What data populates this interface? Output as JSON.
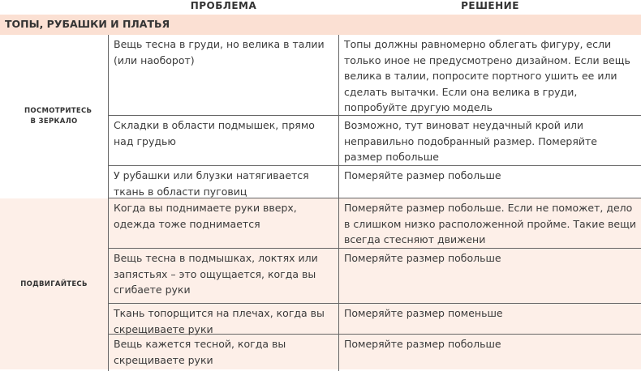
{
  "headers": {
    "problem": "ПРОБЛЕМА",
    "solution": "РЕШЕНИЕ"
  },
  "section": "ТОПЫ, РУБАШКИ И ПЛАТЬЯ",
  "colors": {
    "band": "#fbe0d3",
    "group2_bg": "#fdefe8",
    "border": "#666666"
  },
  "groups": [
    {
      "label": "ПОСМОТРИТЕСЬ В ЗЕРКАЛО",
      "rows": [
        {
          "problem": "Вещь тесна в груди, но велика в талии (или наоборот)",
          "solution": "Топы должны равномерно облегать фигуру, если только иное не предусмотрено дизайном. Если вещь велика в талии, попросите портного ушить ее или сделать вытачки. Если она велика в груди, попробуйте другую модель"
        },
        {
          "problem": "Складки в области подмышек, прямо над грудью",
          "solution": "Возможно, тут виноват неудачный крой или неправильно подобранный размер. Померяйте размер побольше"
        },
        {
          "problem": "У рубашки или блузки натягивается ткань в области пуговиц",
          "solution": "Померяйте размер побольше"
        }
      ]
    },
    {
      "label": "ПОДВИГАЙТЕСЬ",
      "rows": [
        {
          "problem": "Когда вы поднимаете руки вверх, одежда тоже поднимается",
          "solution": "Померяйте размер побольше. Если не поможет, дело в слишком низко расположенной пройме. Такие вещи всегда стесняют движени"
        },
        {
          "problem": "Вещь тесна в подмышках, локтях или запястьях – это ощущается, когда вы сгибаете руки",
          "solution": "Померяйте размер побольше"
        },
        {
          "problem": "Ткань топорщится на плечах, когда вы скрещиваете руки",
          "solution": "Померяйте размер поменьше"
        },
        {
          "problem": "Вещь кажется тесной, когда вы скрещиваете руки",
          "solution": "Померяйте размер побольше"
        }
      ]
    }
  ]
}
